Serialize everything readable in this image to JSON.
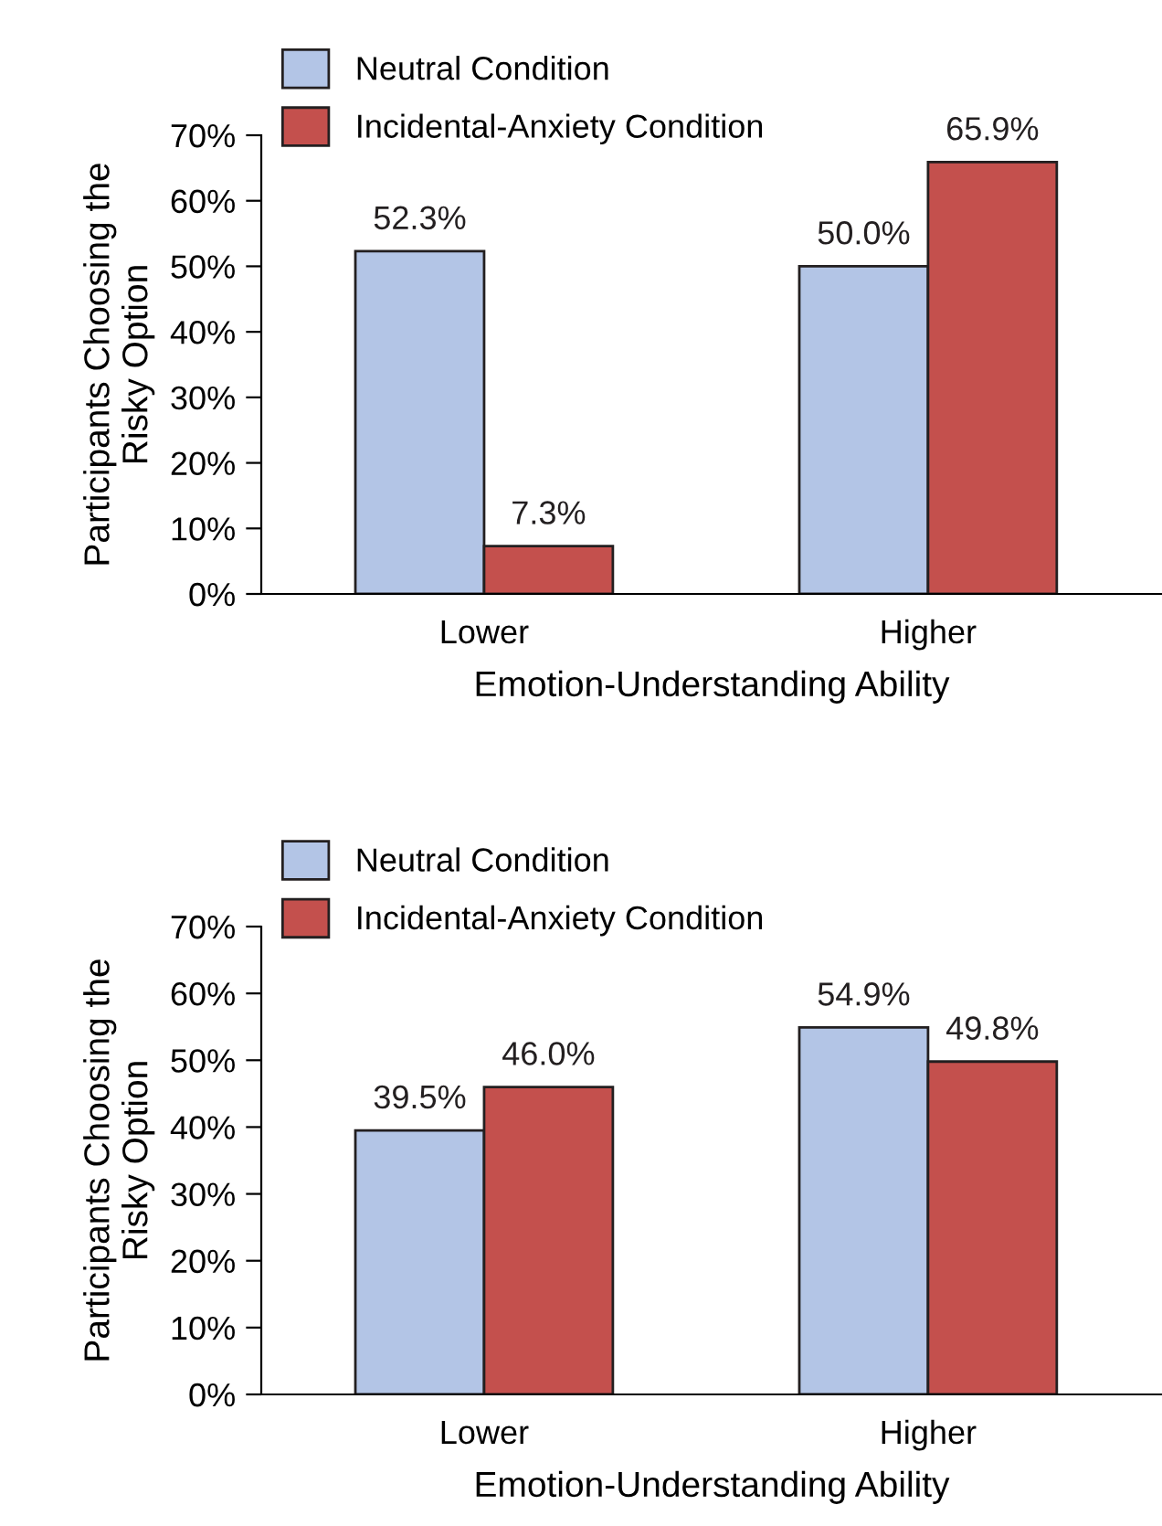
{
  "chart_data": [
    {
      "type": "bar",
      "xlabel": "Emotion-Understanding Ability",
      "ylabel": "Participants Choosing the\nRisky Option",
      "categories": [
        "Lower",
        "Higher"
      ],
      "series": [
        {
          "name": "Neutral Condition",
          "color": "#b3c5e6",
          "values": [
            52.3,
            50.0
          ],
          "value_labels": [
            "52.3%",
            "50.0%"
          ]
        },
        {
          "name": "Incidental-Anxiety Condition",
          "color": "#c4504d",
          "values": [
            7.3,
            65.9
          ],
          "value_labels": [
            "7.3%",
            "65.9%"
          ]
        }
      ],
      "ylim": [
        0,
        70
      ],
      "yticks": [
        {
          "value": 0,
          "label": "0%"
        },
        {
          "value": 10,
          "label": "10%"
        },
        {
          "value": 20,
          "label": "20%"
        },
        {
          "value": 30,
          "label": "30%"
        },
        {
          "value": 40,
          "label": "40%"
        },
        {
          "value": 50,
          "label": "50%"
        },
        {
          "value": 60,
          "label": "60%"
        },
        {
          "value": 70,
          "label": "70%"
        }
      ],
      "grid": false,
      "legend": "top left"
    },
    {
      "type": "bar",
      "xlabel": "Emotion-Understanding Ability",
      "ylabel": "Participants Choosing the\nRisky Option",
      "categories": [
        "Lower",
        "Higher"
      ],
      "series": [
        {
          "name": "Neutral Condition",
          "color": "#b3c5e6",
          "values": [
            39.5,
            54.9
          ],
          "value_labels": [
            "39.5%",
            "54.9%"
          ]
        },
        {
          "name": "Incidental-Anxiety Condition",
          "color": "#c4504d",
          "values": [
            46.0,
            49.8
          ],
          "value_labels": [
            "46.0%",
            "49.8%"
          ]
        }
      ],
      "ylim": [
        0,
        70
      ],
      "yticks": [
        {
          "value": 0,
          "label": "0%"
        },
        {
          "value": 10,
          "label": "10%"
        },
        {
          "value": 20,
          "label": "20%"
        },
        {
          "value": 30,
          "label": "30%"
        },
        {
          "value": 40,
          "label": "40%"
        },
        {
          "value": 50,
          "label": "50%"
        },
        {
          "value": 60,
          "label": "60%"
        },
        {
          "value": 70,
          "label": "70%"
        }
      ],
      "grid": false,
      "legend": "top left"
    }
  ]
}
